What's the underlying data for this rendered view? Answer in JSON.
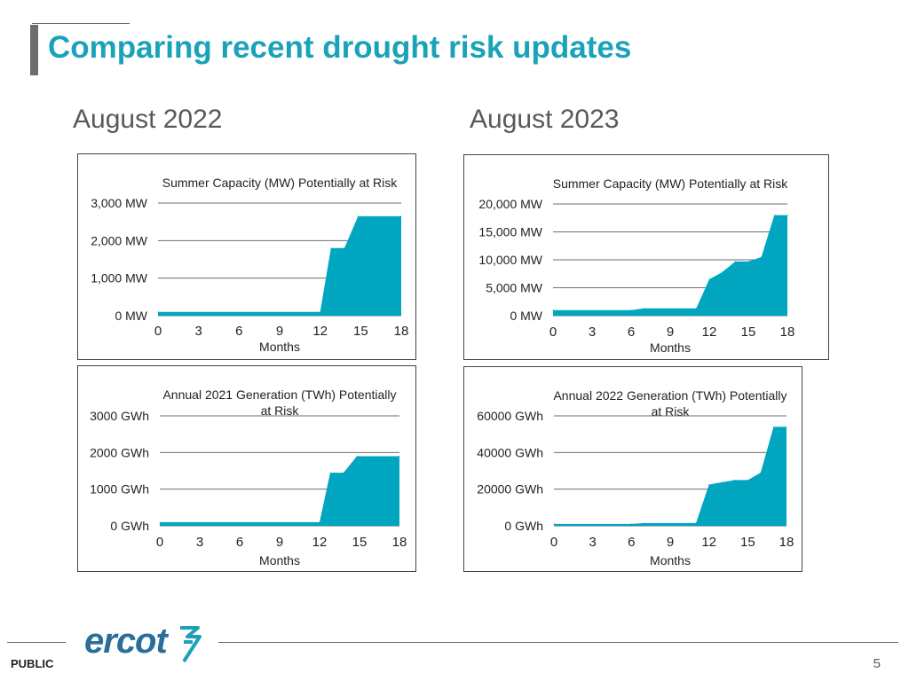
{
  "slide": {
    "title": "Comparing recent drought risk updates",
    "left_heading": "August 2022",
    "right_heading": "August 2023",
    "footer_label": "PUBLIC",
    "page_number": "5",
    "logo_text": "ercot"
  },
  "colors": {
    "title": "#1aa3b8",
    "fill": "#00a5c0",
    "grid": "#6d6e71",
    "text": "#231f20",
    "heading": "#58595b"
  },
  "chart_data": [
    {
      "type": "area",
      "title": [
        "Summer Capacity (MW) Potentially at Risk"
      ],
      "xlabel": "Months",
      "ylabel": "",
      "x_ticks": [
        "0",
        "3",
        "6",
        "9",
        "12",
        "15",
        "18"
      ],
      "xlim": [
        0,
        18
      ],
      "y_ticks": [
        0,
        1000,
        2000,
        3000
      ],
      "y_tick_labels": [
        "0 MW",
        "1,000 MW",
        "2,000 MW",
        "3,000 MW"
      ],
      "ylim": [
        0,
        3000
      ],
      "x": [
        0,
        12,
        12.8,
        13.8,
        14.8,
        18
      ],
      "values": [
        100,
        100,
        1800,
        1800,
        2650,
        2650
      ]
    },
    {
      "type": "area",
      "title": [
        "Summer Capacity (MW) Potentially at Risk"
      ],
      "xlabel": "Months",
      "ylabel": "",
      "x_ticks": [
        "0",
        "3",
        "6",
        "9",
        "12",
        "15",
        "18"
      ],
      "xlim": [
        0,
        18
      ],
      "y_ticks": [
        0,
        5000,
        10000,
        15000,
        20000
      ],
      "y_tick_labels": [
        "0 MW",
        "5,000 MW",
        "10,000 MW",
        "15,000 MW",
        "20,000 MW"
      ],
      "ylim": [
        0,
        20000
      ],
      "x": [
        0,
        6,
        7,
        11,
        12,
        13,
        14,
        15,
        16,
        17,
        18
      ],
      "values": [
        1000,
        1000,
        1300,
        1300,
        6500,
        7800,
        9700,
        9700,
        10500,
        18000,
        18000
      ]
    },
    {
      "type": "area",
      "title": [
        "Annual 2021 Generation (TWh) Potentially",
        "at Risk"
      ],
      "xlabel": "Months",
      "ylabel": "",
      "x_ticks": [
        "0",
        "3",
        "6",
        "9",
        "12",
        "15",
        "18"
      ],
      "xlim": [
        0,
        18
      ],
      "y_ticks": [
        0,
        1000,
        2000,
        3000
      ],
      "y_tick_labels": [
        "0 GWh",
        "1000 GWh",
        "2000 GWh",
        "3000 GWh"
      ],
      "ylim": [
        0,
        3000
      ],
      "x": [
        0,
        12,
        12.8,
        13.8,
        14.8,
        18
      ],
      "values": [
        100,
        100,
        1450,
        1450,
        1900,
        1900
      ]
    },
    {
      "type": "area",
      "title": [
        "Annual 2022 Generation (TWh) Potentially",
        "at Risk"
      ],
      "xlabel": "Months",
      "ylabel": "",
      "x_ticks": [
        "0",
        "3",
        "6",
        "9",
        "12",
        "15",
        "18"
      ],
      "xlim": [
        0,
        18
      ],
      "y_ticks": [
        0,
        20000,
        40000,
        60000
      ],
      "y_tick_labels": [
        "0 GWh",
        "20000 GWh",
        "40000 GWh",
        "60000 GWh"
      ],
      "ylim": [
        0,
        60000
      ],
      "x": [
        0,
        6,
        7,
        11,
        12,
        13,
        14,
        15,
        16,
        17,
        18
      ],
      "values": [
        1000,
        1000,
        1500,
        1500,
        22500,
        23800,
        25000,
        25000,
        29000,
        54000,
        54000
      ]
    }
  ]
}
